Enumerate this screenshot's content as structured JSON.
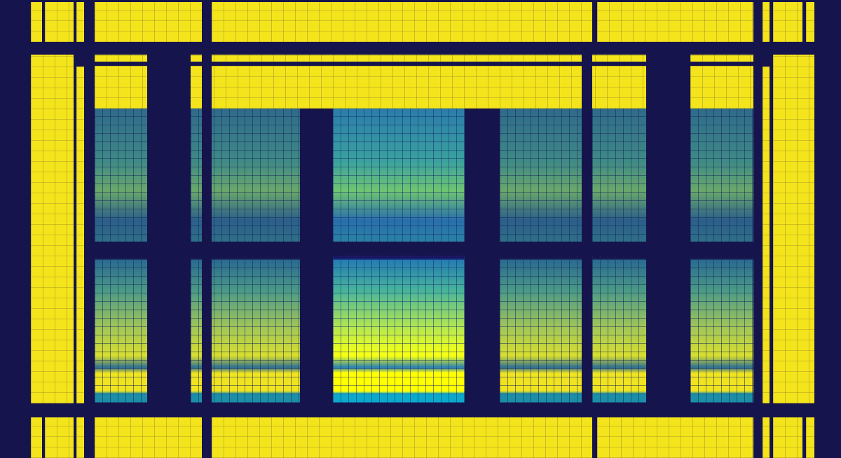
{
  "artwork": {
    "colors": {
      "background": "#16144c",
      "yellow": "#f4e41c",
      "teal": "#3f8a86",
      "blue": "#2c5f8a"
    }
  }
}
